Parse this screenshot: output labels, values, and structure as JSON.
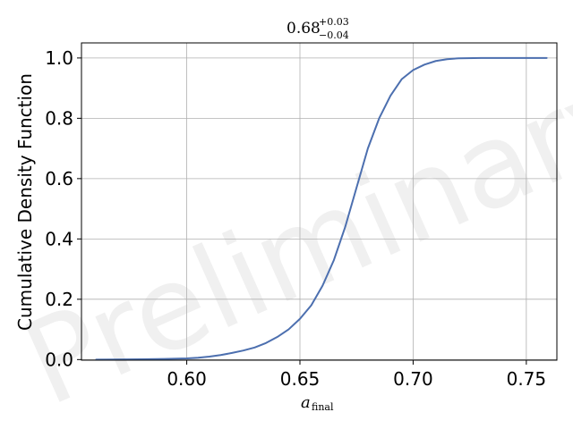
{
  "chart_data": {
    "type": "line",
    "title": {
      "main": "0.68",
      "sup": "+0.03",
      "sub": "−0.04"
    },
    "xlabel": {
      "main": "a",
      "sub": "final"
    },
    "ylabel": "Cumulative Density Function",
    "xlim": [
      0.5535,
      0.7635
    ],
    "ylim": [
      -0.002,
      1.05
    ],
    "x_ticks": [
      0.6,
      0.65,
      0.7,
      0.75
    ],
    "x_tick_labels": [
      "0.60",
      "0.65",
      "0.70",
      "0.75"
    ],
    "y_ticks": [
      0.0,
      0.2,
      0.4,
      0.6,
      0.8,
      1.0
    ],
    "y_tick_labels": [
      "0.0",
      "0.2",
      "0.4",
      "0.6",
      "0.8",
      "1.0"
    ],
    "grid": true,
    "watermark": "Preliminary",
    "line_color": "#4c6faf",
    "series": [
      {
        "x": [
          0.56,
          0.58,
          0.59,
          0.6,
          0.605,
          0.61,
          0.615,
          0.62,
          0.625,
          0.63,
          0.635,
          0.64,
          0.645,
          0.65,
          0.655,
          0.66,
          0.665,
          0.67,
          0.675,
          0.68,
          0.685,
          0.69,
          0.695,
          0.7,
          0.705,
          0.71,
          0.715,
          0.72,
          0.73,
          0.74,
          0.75,
          0.759
        ],
        "y": [
          0.0,
          0.001,
          0.002,
          0.004,
          0.006,
          0.01,
          0.015,
          0.022,
          0.03,
          0.04,
          0.055,
          0.075,
          0.1,
          0.135,
          0.18,
          0.245,
          0.33,
          0.44,
          0.57,
          0.7,
          0.8,
          0.875,
          0.93,
          0.96,
          0.978,
          0.99,
          0.996,
          0.999,
          1.0,
          1.0,
          1.0,
          1.0
        ]
      }
    ]
  }
}
